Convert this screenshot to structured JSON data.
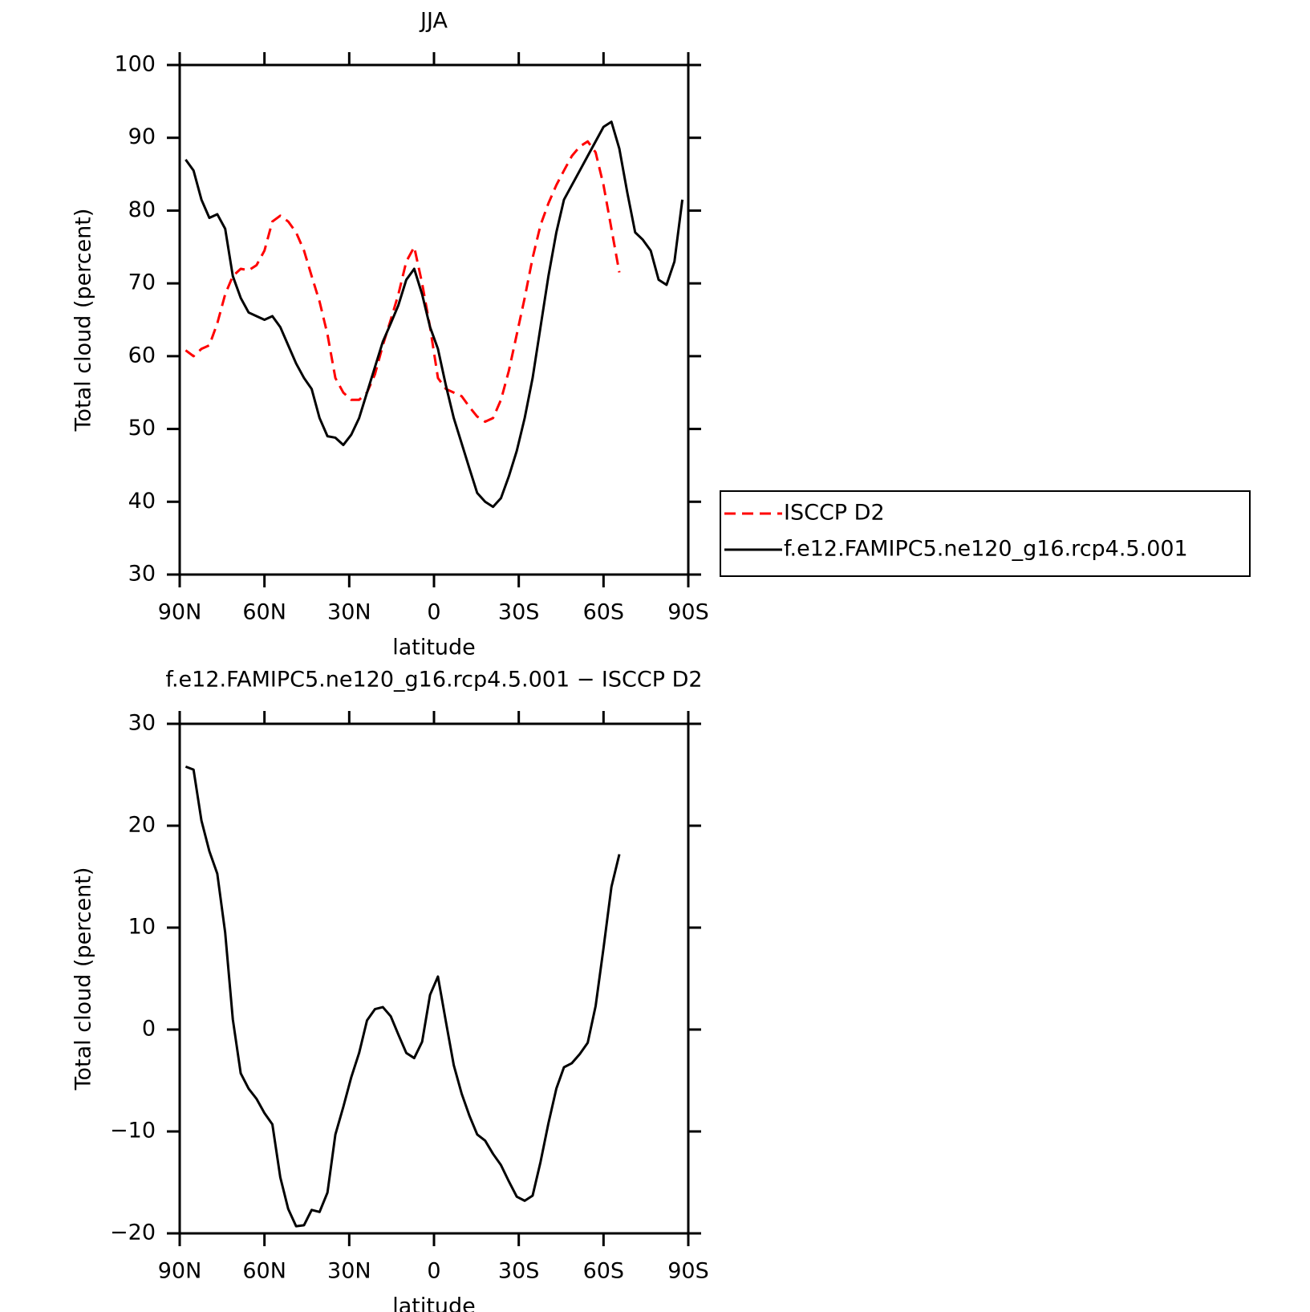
{
  "chart_data": [
    {
      "type": "line",
      "title": "JJA",
      "x_label": "latitude",
      "y_label": "Total cloud (percent)",
      "x": [
        87.9,
        85.1,
        82.3,
        79.5,
        76.7,
        73.9,
        71.2,
        68.4,
        65.6,
        62.8,
        60.0,
        57.2,
        54.4,
        51.6,
        48.8,
        46.0,
        43.3,
        40.5,
        37.7,
        34.9,
        32.1,
        29.3,
        26.5,
        23.7,
        20.9,
        18.1,
        15.3,
        12.6,
        9.8,
        7.0,
        4.2,
        1.4,
        -1.4,
        -4.2,
        -7.0,
        -9.8,
        -12.6,
        -15.3,
        -18.1,
        -20.9,
        -23.7,
        -26.5,
        -29.3,
        -32.1,
        -34.9,
        -37.7,
        -40.5,
        -43.3,
        -46.0,
        -48.8,
        -51.6,
        -54.4,
        -57.2,
        -60.0,
        -62.8,
        -65.6,
        -68.4,
        -71.2,
        -73.9,
        -76.7,
        -79.5,
        -82.3,
        -85.1,
        -87.9
      ],
      "series": [
        {
          "name": "ISCCP D2",
          "color": "#ff0000",
          "line_style": "dashed",
          "values": [
            60.8,
            60,
            61,
            61.5,
            64.5,
            68.5,
            71,
            72,
            71.8,
            72.5,
            74.5,
            78.5,
            79.3,
            78.5,
            77,
            74.5,
            71,
            67.5,
            63,
            57,
            55,
            54,
            54,
            55,
            57.5,
            61.5,
            65,
            68.5,
            73,
            75,
            70,
            64,
            57,
            55.5,
            55,
            54.5,
            53,
            51.7,
            51,
            51.5,
            54,
            58,
            63,
            68,
            73.5,
            78,
            81,
            83.5,
            85.5,
            87.5,
            88.8,
            89.5,
            88,
            83.5,
            77.5,
            71.5,
            null,
            null,
            null,
            null,
            null,
            null,
            null,
            null
          ]
        },
        {
          "name": "f.e12.FAMIPC5.ne120_g16.rcp4.5.001",
          "color": "#000000",
          "line_style": "solid",
          "values": [
            87,
            85.5,
            81.5,
            79,
            79.5,
            77.5,
            71,
            68,
            66,
            65.5,
            65,
            65.5,
            64,
            61.5,
            59,
            57,
            55.5,
            51.5,
            49,
            48.8,
            47.8,
            49.2,
            51.5,
            55,
            58.5,
            62,
            64.5,
            67,
            70.5,
            72,
            68.5,
            64,
            61,
            56,
            51.5,
            48,
            44.5,
            41.2,
            40,
            39.3,
            40.5,
            43.5,
            47,
            51.5,
            57,
            64,
            71,
            77,
            81.5,
            83.5,
            85.5,
            87.5,
            89.5,
            91.5,
            92.2,
            88.5,
            82.5,
            77,
            76,
            74.5,
            70.5,
            69.8,
            73,
            81.5
          ]
        }
      ],
      "xlim": [
        90,
        -90
      ],
      "xticks": [
        {
          "value": 90,
          "label": "90N"
        },
        {
          "value": 60,
          "label": "60N"
        },
        {
          "value": 30,
          "label": "30N"
        },
        0,
        {
          "value": -30,
          "label": "30S"
        },
        {
          "value": -60,
          "label": "60S"
        },
        {
          "value": -90,
          "label": "90S"
        }
      ],
      "ylim": [
        30,
        100
      ],
      "yticks": [
        30,
        40,
        50,
        60,
        70,
        80,
        90,
        100
      ],
      "legend": "right"
    },
    {
      "type": "line",
      "title": "f.e12.FAMIPC5.ne120_g16.rcp4.5.001 − ISCCP D2",
      "x_label": "latitude",
      "y_label": "Total cloud (percent)",
      "x": [
        87.9,
        85.1,
        82.3,
        79.5,
        76.7,
        73.9,
        71.2,
        68.4,
        65.6,
        62.8,
        60.0,
        57.2,
        54.4,
        51.6,
        48.8,
        46.0,
        43.3,
        40.5,
        37.7,
        34.9,
        32.1,
        29.3,
        26.5,
        23.7,
        20.9,
        18.1,
        15.3,
        12.6,
        9.8,
        7.0,
        4.2,
        1.4,
        -1.4,
        -4.2,
        -7.0,
        -9.8,
        -12.6,
        -15.3,
        -18.1,
        -20.9,
        -23.7,
        -26.5,
        -29.3,
        -32.1,
        -34.9,
        -37.7,
        -40.5,
        -43.3,
        -46.0,
        -48.8,
        -51.6,
        -54.4,
        -57.2,
        -60.0,
        -62.8,
        -65.6,
        -68.4,
        -71.2,
        -73.9,
        -76.7,
        -79.5,
        -82.3,
        -85.1,
        -87.9
      ],
      "values": [
        25.8,
        25.5,
        20.5,
        17.5,
        15.3,
        9.5,
        1,
        -4.3,
        -5.8,
        -6.8,
        -8.2,
        -9.3,
        -14.5,
        -17.6,
        -19.3,
        -19.2,
        -17.7,
        -17.9,
        -16,
        -10.3,
        -7.6,
        -4.7,
        -2.3,
        0.9,
        2,
        2.2,
        1.3,
        -0.5,
        -2.3,
        -2.8,
        -1.2,
        3.4,
        5.2,
        0.8,
        -3.5,
        -6.3,
        -8.5,
        -10.3,
        -10.9,
        -12.2,
        -13.3,
        -14.9,
        -16.4,
        -16.8,
        -16.3,
        -13,
        -9.2,
        -5.8,
        -3.7,
        -3.3,
        -2.4,
        -1.3,
        2.3,
        8,
        14,
        17.2,
        null,
        null,
        null,
        null,
        null,
        null,
        null,
        null
      ],
      "color": "#000000",
      "xlim": [
        90,
        -90
      ],
      "xticks": [
        {
          "value": 90,
          "label": "90N"
        },
        {
          "value": 60,
          "label": "60N"
        },
        {
          "value": 30,
          "label": "30N"
        },
        0,
        {
          "value": -30,
          "label": "30S"
        },
        {
          "value": -60,
          "label": "60S"
        },
        {
          "value": -90,
          "label": "90S"
        }
      ],
      "ylim": [
        -20,
        30
      ],
      "yticks": [
        {
          "value": -20,
          "label": "−20"
        },
        {
          "value": -10,
          "label": "−10"
        },
        0,
        10,
        20,
        30
      ]
    }
  ]
}
